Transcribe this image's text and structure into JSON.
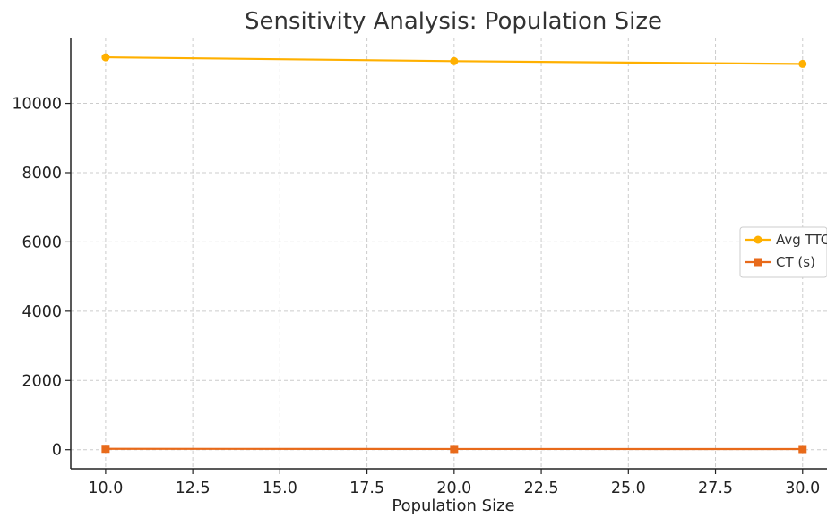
{
  "chart_data": {
    "type": "line",
    "title": "Sensitivity Analysis: Population Size",
    "xlabel": "Population Size",
    "ylabel": "",
    "x": [
      10,
      20,
      30
    ],
    "xlim": [
      9,
      30.7
    ],
    "ylim": [
      -550,
      11900
    ],
    "xticks": [
      10.0,
      12.5,
      15.0,
      17.5,
      20.0,
      22.5,
      25.0,
      27.5,
      30.0
    ],
    "xtick_labels": [
      "10.0",
      "12.5",
      "15.0",
      "17.5",
      "20.0",
      "22.5",
      "25.0",
      "27.5",
      "30.0"
    ],
    "yticks": [
      0,
      2000,
      4000,
      6000,
      8000,
      10000
    ],
    "ytick_labels": [
      "0",
      "2000",
      "4000",
      "6000",
      "8000",
      "10000"
    ],
    "grid": true,
    "legend_position": "center-right",
    "series": [
      {
        "name": "Avg TTC",
        "values": [
          11330,
          11220,
          11140
        ],
        "color": "#FFB000",
        "marker": "circle"
      },
      {
        "name": "CT (s)",
        "values": [
          25,
          20,
          18
        ],
        "color": "#E86A1A",
        "marker": "square"
      }
    ]
  }
}
